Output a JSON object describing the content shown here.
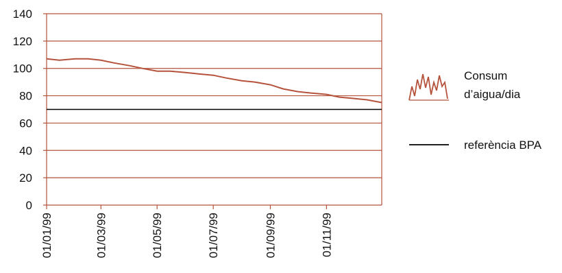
{
  "chart_data": {
    "type": "line",
    "title": "",
    "xlabel": "",
    "ylabel": "",
    "ylim": [
      0,
      140
    ],
    "yticks": [
      0,
      20,
      40,
      60,
      80,
      100,
      120,
      140
    ],
    "xlim": [
      "01/01/99",
      "31/12/99"
    ],
    "xticks": [
      "01/01/99",
      "01/03/99",
      "01/05/99",
      "01/07/99",
      "01/09/99",
      "01/11/99"
    ],
    "grid": true,
    "legend_position": "right",
    "series": [
      {
        "name": "Consum d’aigua/dia",
        "color": "#b5523b",
        "x": [
          "01/01/99",
          "15/01/99",
          "01/02/99",
          "15/02/99",
          "01/03/99",
          "15/03/99",
          "01/04/99",
          "15/04/99",
          "01/05/99",
          "15/05/99",
          "01/06/99",
          "15/06/99",
          "01/07/99",
          "15/07/99",
          "01/08/99",
          "15/08/99",
          "01/09/99",
          "15/09/99",
          "01/10/99",
          "15/10/99",
          "01/11/99",
          "15/11/99",
          "01/12/99",
          "15/12/99",
          "31/12/99"
        ],
        "values": [
          107,
          106,
          107,
          107,
          106,
          104,
          102,
          100,
          98,
          98,
          97,
          96,
          95,
          93,
          91,
          90,
          88,
          85,
          83,
          82,
          81,
          79,
          78,
          77,
          75
        ]
      },
      {
        "name": "referència BPA",
        "color": "#000000",
        "x": [
          "01/01/99",
          "31/12/99"
        ],
        "values": [
          70,
          70
        ]
      }
    ]
  }
}
